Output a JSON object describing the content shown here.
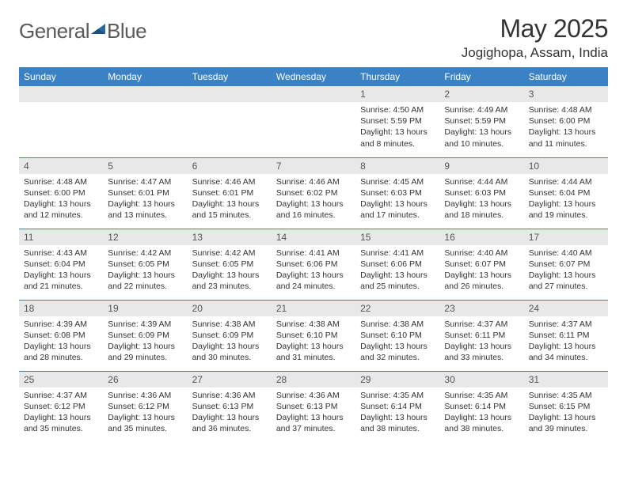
{
  "logo": {
    "part1": "General",
    "part2": "Blue"
  },
  "title": "May 2025",
  "location": "Jogighopa, Assam, India",
  "colors": {
    "header_bg": "#3b82c4",
    "header_text": "#ffffff",
    "daynum_bg": "#e8e8e8",
    "border": "#3b82c4",
    "text": "#333333",
    "logo_gray": "#5a5a5a",
    "logo_blue": "#2968a8"
  },
  "weekdays": [
    "Sunday",
    "Monday",
    "Tuesday",
    "Wednesday",
    "Thursday",
    "Friday",
    "Saturday"
  ],
  "weeks": [
    [
      null,
      null,
      null,
      null,
      {
        "n": "1",
        "sunrise": "4:50 AM",
        "sunset": "5:59 PM",
        "daylight": "13 hours and 8 minutes."
      },
      {
        "n": "2",
        "sunrise": "4:49 AM",
        "sunset": "5:59 PM",
        "daylight": "13 hours and 10 minutes."
      },
      {
        "n": "3",
        "sunrise": "4:48 AM",
        "sunset": "6:00 PM",
        "daylight": "13 hours and 11 minutes."
      }
    ],
    [
      {
        "n": "4",
        "sunrise": "4:48 AM",
        "sunset": "6:00 PM",
        "daylight": "13 hours and 12 minutes."
      },
      {
        "n": "5",
        "sunrise": "4:47 AM",
        "sunset": "6:01 PM",
        "daylight": "13 hours and 13 minutes."
      },
      {
        "n": "6",
        "sunrise": "4:46 AM",
        "sunset": "6:01 PM",
        "daylight": "13 hours and 15 minutes."
      },
      {
        "n": "7",
        "sunrise": "4:46 AM",
        "sunset": "6:02 PM",
        "daylight": "13 hours and 16 minutes."
      },
      {
        "n": "8",
        "sunrise": "4:45 AM",
        "sunset": "6:03 PM",
        "daylight": "13 hours and 17 minutes."
      },
      {
        "n": "9",
        "sunrise": "4:44 AM",
        "sunset": "6:03 PM",
        "daylight": "13 hours and 18 minutes."
      },
      {
        "n": "10",
        "sunrise": "4:44 AM",
        "sunset": "6:04 PM",
        "daylight": "13 hours and 19 minutes."
      }
    ],
    [
      {
        "n": "11",
        "sunrise": "4:43 AM",
        "sunset": "6:04 PM",
        "daylight": "13 hours and 21 minutes."
      },
      {
        "n": "12",
        "sunrise": "4:42 AM",
        "sunset": "6:05 PM",
        "daylight": "13 hours and 22 minutes."
      },
      {
        "n": "13",
        "sunrise": "4:42 AM",
        "sunset": "6:05 PM",
        "daylight": "13 hours and 23 minutes."
      },
      {
        "n": "14",
        "sunrise": "4:41 AM",
        "sunset": "6:06 PM",
        "daylight": "13 hours and 24 minutes."
      },
      {
        "n": "15",
        "sunrise": "4:41 AM",
        "sunset": "6:06 PM",
        "daylight": "13 hours and 25 minutes."
      },
      {
        "n": "16",
        "sunrise": "4:40 AM",
        "sunset": "6:07 PM",
        "daylight": "13 hours and 26 minutes."
      },
      {
        "n": "17",
        "sunrise": "4:40 AM",
        "sunset": "6:07 PM",
        "daylight": "13 hours and 27 minutes."
      }
    ],
    [
      {
        "n": "18",
        "sunrise": "4:39 AM",
        "sunset": "6:08 PM",
        "daylight": "13 hours and 28 minutes."
      },
      {
        "n": "19",
        "sunrise": "4:39 AM",
        "sunset": "6:09 PM",
        "daylight": "13 hours and 29 minutes."
      },
      {
        "n": "20",
        "sunrise": "4:38 AM",
        "sunset": "6:09 PM",
        "daylight": "13 hours and 30 minutes."
      },
      {
        "n": "21",
        "sunrise": "4:38 AM",
        "sunset": "6:10 PM",
        "daylight": "13 hours and 31 minutes."
      },
      {
        "n": "22",
        "sunrise": "4:38 AM",
        "sunset": "6:10 PM",
        "daylight": "13 hours and 32 minutes."
      },
      {
        "n": "23",
        "sunrise": "4:37 AM",
        "sunset": "6:11 PM",
        "daylight": "13 hours and 33 minutes."
      },
      {
        "n": "24",
        "sunrise": "4:37 AM",
        "sunset": "6:11 PM",
        "daylight": "13 hours and 34 minutes."
      }
    ],
    [
      {
        "n": "25",
        "sunrise": "4:37 AM",
        "sunset": "6:12 PM",
        "daylight": "13 hours and 35 minutes."
      },
      {
        "n": "26",
        "sunrise": "4:36 AM",
        "sunset": "6:12 PM",
        "daylight": "13 hours and 35 minutes."
      },
      {
        "n": "27",
        "sunrise": "4:36 AM",
        "sunset": "6:13 PM",
        "daylight": "13 hours and 36 minutes."
      },
      {
        "n": "28",
        "sunrise": "4:36 AM",
        "sunset": "6:13 PM",
        "daylight": "13 hours and 37 minutes."
      },
      {
        "n": "29",
        "sunrise": "4:35 AM",
        "sunset": "6:14 PM",
        "daylight": "13 hours and 38 minutes."
      },
      {
        "n": "30",
        "sunrise": "4:35 AM",
        "sunset": "6:14 PM",
        "daylight": "13 hours and 38 minutes."
      },
      {
        "n": "31",
        "sunrise": "4:35 AM",
        "sunset": "6:15 PM",
        "daylight": "13 hours and 39 minutes."
      }
    ]
  ],
  "labels": {
    "sunrise": "Sunrise:",
    "sunset": "Sunset:",
    "daylight": "Daylight:"
  }
}
